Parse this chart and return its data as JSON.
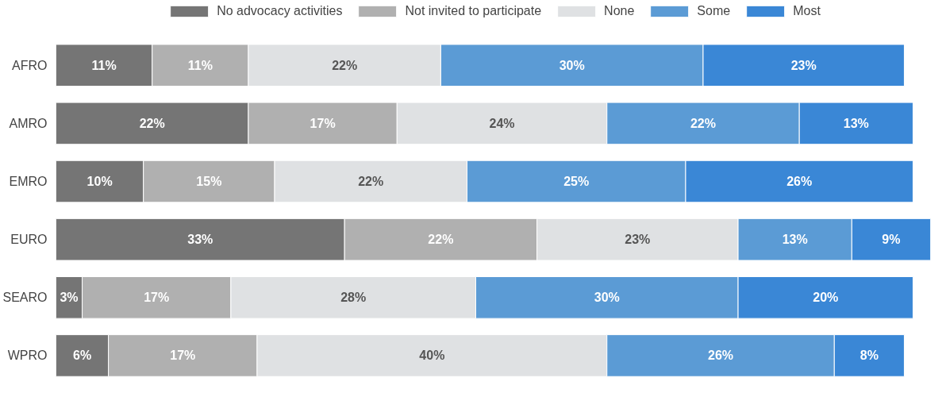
{
  "chart_data": {
    "type": "bar",
    "orientation": "horizontal",
    "stacked": true,
    "legend": "top",
    "grid": false,
    "categories": [
      "AFRO",
      "AMRO",
      "EMRO",
      "EURO",
      "SEARO",
      "WPRO"
    ],
    "series": [
      {
        "name": "No advocacy activities",
        "color": "#757575",
        "values": [
          11,
          22,
          10,
          33,
          3,
          6
        ],
        "value_labels": [
          "11%",
          "22%",
          "10%",
          "33%",
          "3%",
          "6%"
        ]
      },
      {
        "name": "Not invited to participate",
        "color": "#b0b0b0",
        "values": [
          11,
          17,
          15,
          22,
          17,
          17
        ],
        "value_labels": [
          "11%",
          "17%",
          "15%",
          "22%",
          "17%",
          "17%"
        ]
      },
      {
        "name": "None",
        "color": "#dfe1e3",
        "values": [
          22,
          24,
          22,
          23,
          28,
          40
        ],
        "value_labels": [
          "22%",
          "24%",
          "22%",
          "23%",
          "28%",
          "40%"
        ]
      },
      {
        "name": "Some",
        "color": "#5b9bd5",
        "values": [
          30,
          22,
          25,
          13,
          30,
          26
        ],
        "value_labels": [
          "30%",
          "22%",
          "25%",
          "13%",
          "30%",
          "26%"
        ]
      },
      {
        "name": "Most",
        "color": "#3a87d6",
        "values": [
          23,
          13,
          26,
          9,
          20,
          8
        ],
        "value_labels": [
          "23%",
          "13%",
          "26%",
          "9%",
          "20%",
          "8%"
        ]
      }
    ]
  }
}
